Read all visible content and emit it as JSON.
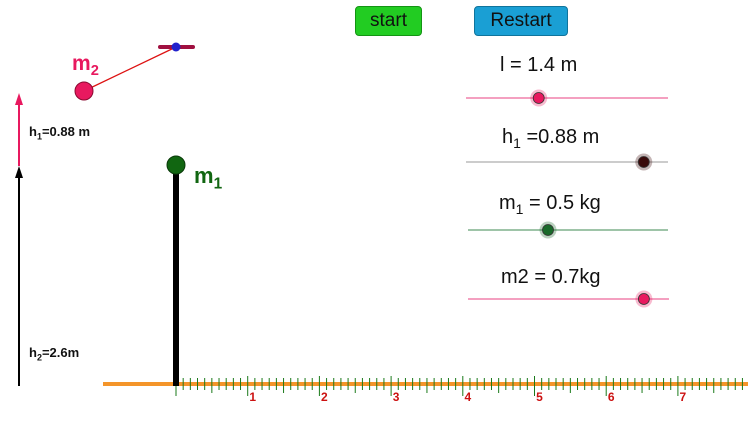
{
  "buttons": {
    "start": "start",
    "restart": "Restart"
  },
  "sliders": [
    {
      "id": "length",
      "name": "l",
      "sub": "",
      "text": " = 1.4 m",
      "value": 1.4,
      "min": 0.5,
      "max": 3,
      "track_color": "#f4a0c0",
      "knob_color": "#e8195f"
    },
    {
      "id": "h1",
      "name": "h",
      "sub": "1",
      "text": " =0.88 m",
      "value": 0.88,
      "min": 0,
      "max": 1,
      "track_color": "#cccccc",
      "knob_color": "#3a0a0a"
    },
    {
      "id": "m1",
      "name": "m",
      "sub": "1",
      "text": " = 0.5 kg",
      "value": 0.5,
      "min": 0.1,
      "max": 1.1,
      "track_color": "#9ec4a8",
      "knob_color": "#1a6a2a"
    },
    {
      "id": "m2",
      "name": "m2 = 0.7kg",
      "sub": "",
      "text": "",
      "value": 0.7,
      "min": 0,
      "max": 0.8,
      "track_color": "#f4a0c0",
      "knob_color": "#e8195f"
    }
  ],
  "labels": {
    "m1": {
      "main": "m",
      "sub": "1"
    },
    "m2": {
      "main": "m",
      "sub": "2"
    },
    "h1": {
      "main": "h",
      "sub": "1",
      "text": "=0.88 m"
    },
    "h2": {
      "main": "h",
      "sub": "2",
      "text": "=2.6m"
    }
  },
  "ruler": {
    "ticks": [
      "1",
      "2",
      "3",
      "4",
      "5",
      "6",
      "7"
    ],
    "tick_color": "#1a7a1a",
    "number_color": "#cc1111",
    "line_color": "#f4952a"
  },
  "colors": {
    "m1": "#116611",
    "m2": "#e8195f",
    "pivot": "#2222cc",
    "pivot_bar": "#a01040",
    "string": "#dd1111",
    "h1_arrow": "#e8195f"
  }
}
